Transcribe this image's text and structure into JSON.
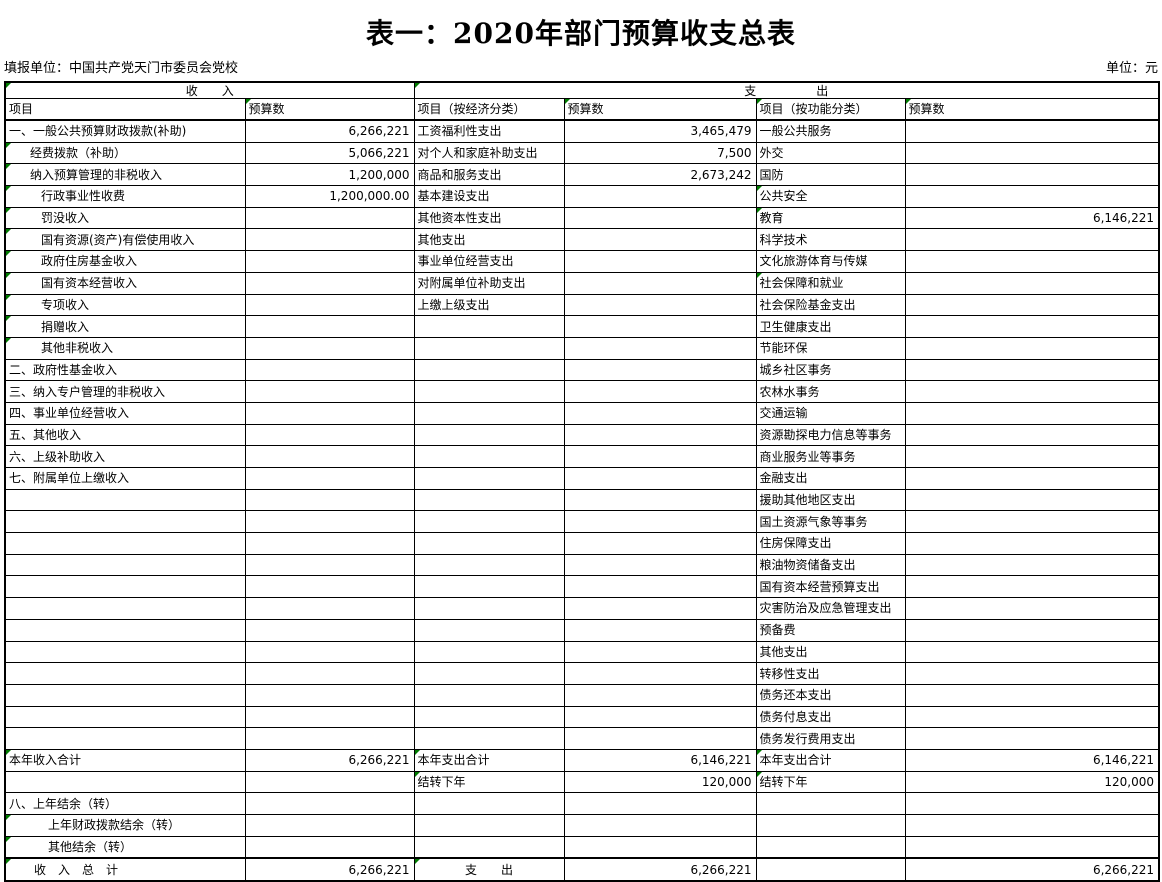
{
  "title": "表一：2020年部门预算收支总表",
  "meta": {
    "report_unit": "填报单位：中国共产党天门市委员会党校",
    "unit": "单位：元"
  },
  "colors": {
    "flag_green": "#007B00",
    "border": "#000000",
    "text": "#000000",
    "background": "#FFFFFF"
  },
  "table": {
    "group_headers": {
      "income": "收　　入",
      "expense": "支　　　　　出"
    },
    "column_headers": [
      {
        "text": "项目"
      },
      {
        "text": "预算数",
        "flag": true
      },
      {
        "text": "项目（按经济分类）"
      },
      {
        "text": "预算数",
        "flag": true
      },
      {
        "text": "项目（按功能分类）",
        "flag": true
      },
      {
        "text": "预算数",
        "flag": true
      }
    ],
    "rows": [
      [
        {
          "text": "一、一般公共预算财政拨款(补助)"
        },
        {
          "text": "6,266,221",
          "align": "r"
        },
        {
          "text": "工资福利性支出"
        },
        {
          "text": "3,465,479",
          "align": "r"
        },
        {
          "text": "一般公共服务"
        },
        {}
      ],
      [
        {
          "text": "经费拨款（补助）",
          "indent": 1,
          "flag": true
        },
        {
          "text": "5,066,221",
          "align": "r"
        },
        {
          "text": "对个人和家庭补助支出"
        },
        {
          "text": "7,500",
          "align": "r"
        },
        {
          "text": "外交"
        },
        {}
      ],
      [
        {
          "text": "纳入预算管理的非税收入",
          "indent": 1,
          "flag": true
        },
        {
          "text": "1,200,000",
          "align": "r"
        },
        {
          "text": "商品和服务支出"
        },
        {
          "text": "2,673,242",
          "align": "r"
        },
        {
          "text": "国防"
        },
        {}
      ],
      [
        {
          "text": "行政事业性收费",
          "indent": 2,
          "flag": true
        },
        {
          "text": "1,200,000.00",
          "align": "r"
        },
        {
          "text": "基本建设支出"
        },
        {},
        {
          "text": "公共安全",
          "flag": true
        },
        {}
      ],
      [
        {
          "text": "罚没收入",
          "indent": 2,
          "flag": true
        },
        {},
        {
          "text": "其他资本性支出"
        },
        {},
        {
          "text": "教育",
          "flag": true
        },
        {
          "text": "6,146,221",
          "align": "r"
        }
      ],
      [
        {
          "text": "国有资源(资产)有偿使用收入",
          "indent": 2,
          "flag": true
        },
        {},
        {
          "text": "其他支出"
        },
        {},
        {
          "text": "科学技术"
        },
        {}
      ],
      [
        {
          "text": "政府住房基金收入",
          "indent": 2,
          "flag": true
        },
        {},
        {
          "text": "事业单位经营支出"
        },
        {},
        {
          "text": "文化旅游体育与传媒"
        },
        {}
      ],
      [
        {
          "text": "国有资本经营收入",
          "indent": 2,
          "flag": true
        },
        {},
        {
          "text": "对附属单位补助支出"
        },
        {},
        {
          "text": "社会保障和就业",
          "flag": true
        },
        {}
      ],
      [
        {
          "text": "专项收入",
          "indent": 2,
          "flag": true
        },
        {},
        {
          "text": "上缴上级支出"
        },
        {},
        {
          "text": "社会保险基金支出"
        },
        {}
      ],
      [
        {
          "text": "捐赠收入",
          "indent": 2,
          "flag": true
        },
        {},
        {},
        {},
        {
          "text": "卫生健康支出"
        },
        {}
      ],
      [
        {
          "text": "其他非税收入",
          "indent": 2,
          "flag": true
        },
        {},
        {},
        {},
        {
          "text": "节能环保"
        },
        {}
      ],
      [
        {
          "text": "二、政府性基金收入"
        },
        {},
        {},
        {},
        {
          "text": "城乡社区事务"
        },
        {}
      ],
      [
        {
          "text": "三、纳入专户管理的非税收入"
        },
        {},
        {},
        {},
        {
          "text": "农林水事务"
        },
        {}
      ],
      [
        {
          "text": "四、事业单位经营收入"
        },
        {},
        {},
        {},
        {
          "text": "交通运输"
        },
        {}
      ],
      [
        {
          "text": "五、其他收入"
        },
        {},
        {},
        {},
        {
          "text": "资源勘探电力信息等事务"
        },
        {}
      ],
      [
        {
          "text": "六、上级补助收入"
        },
        {},
        {},
        {},
        {
          "text": "商业服务业等事务"
        },
        {}
      ],
      [
        {
          "text": "七、附属单位上缴收入"
        },
        {},
        {},
        {},
        {
          "text": "金融支出"
        },
        {}
      ],
      [
        {},
        {},
        {},
        {},
        {
          "text": "援助其他地区支出"
        },
        {}
      ],
      [
        {},
        {},
        {},
        {},
        {
          "text": "国土资源气象等事务"
        },
        {}
      ],
      [
        {},
        {},
        {},
        {},
        {
          "text": "住房保障支出"
        },
        {}
      ],
      [
        {},
        {},
        {},
        {},
        {
          "text": "粮油物资储备支出"
        },
        {}
      ],
      [
        {},
        {},
        {},
        {},
        {
          "text": "国有资本经营预算支出"
        },
        {}
      ],
      [
        {},
        {},
        {},
        {},
        {
          "text": "灾害防治及应急管理支出"
        },
        {}
      ],
      [
        {},
        {},
        {},
        {},
        {
          "text": "预备费"
        },
        {}
      ],
      [
        {},
        {},
        {},
        {},
        {
          "text": "其他支出"
        },
        {}
      ],
      [
        {},
        {},
        {},
        {},
        {
          "text": "转移性支出"
        },
        {}
      ],
      [
        {},
        {},
        {},
        {},
        {
          "text": "债务还本支出"
        },
        {}
      ],
      [
        {},
        {},
        {},
        {},
        {
          "text": "债务付息支出"
        },
        {}
      ],
      [
        {},
        {},
        {},
        {},
        {
          "text": "债务发行费用支出"
        },
        {}
      ],
      [
        {
          "text": "本年收入合计",
          "flag": true
        },
        {
          "text": "6,266,221",
          "align": "r"
        },
        {
          "text": "本年支出合计",
          "flag": true
        },
        {
          "text": "6,146,221",
          "align": "r"
        },
        {
          "text": "本年支出合计",
          "flag": true
        },
        {
          "text": "6,146,221",
          "align": "r"
        }
      ],
      [
        {},
        {},
        {
          "text": "结转下年",
          "flag": true
        },
        {
          "text": "120,000",
          "align": "r"
        },
        {
          "text": "结转下年",
          "flag": true
        },
        {
          "text": "120,000",
          "align": "r"
        }
      ],
      [
        {
          "text": "八、上年结余（转）"
        },
        {},
        {},
        {},
        {},
        {}
      ],
      [
        {
          "text": "上年财政拨款结余（转）",
          "indent": 3,
          "flag": true
        },
        {},
        {},
        {},
        {},
        {}
      ],
      [
        {
          "text": "其他结余（转）",
          "indent": 3,
          "flag": true
        },
        {},
        {},
        {},
        {},
        {}
      ],
      [
        {
          "text": "收　入　总　计",
          "indent": 4,
          "flag": true
        },
        {
          "text": "6,266,221",
          "align": "r"
        },
        {
          "text": "支　　出",
          "align": "c",
          "flag": true
        },
        {
          "text": "6,266,221",
          "align": "r"
        },
        {},
        {
          "text": "6,266,221",
          "align": "r"
        }
      ]
    ]
  }
}
